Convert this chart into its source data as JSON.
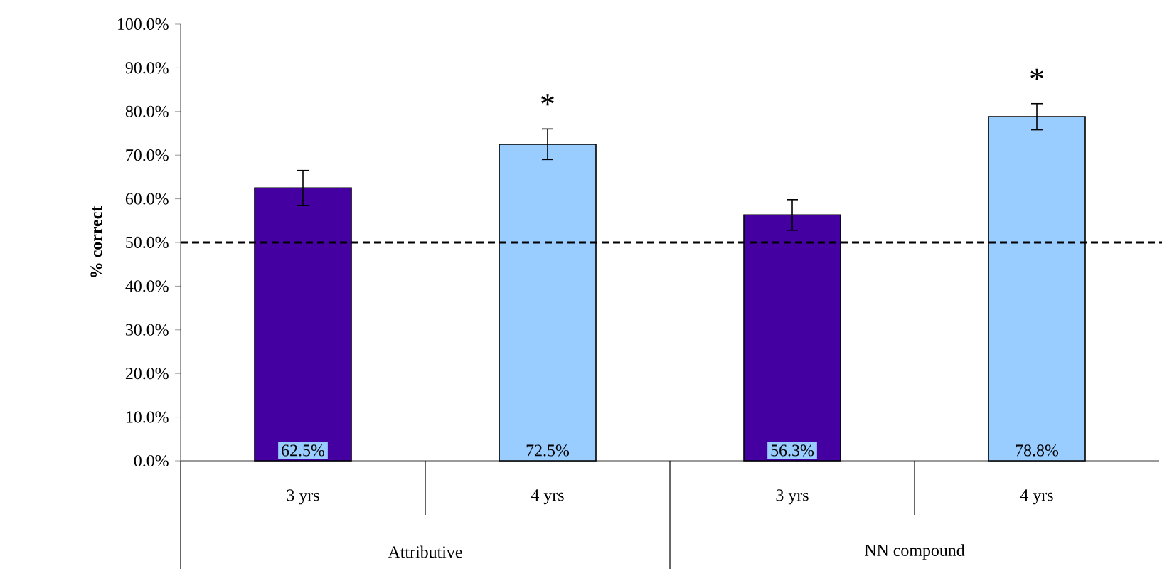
{
  "chart_data": {
    "type": "bar",
    "ylabel": "% correct",
    "categories": [
      "3 yrs",
      "4 yrs",
      "3 yrs",
      "4 yrs"
    ],
    "values": [
      62.5,
      72.5,
      56.3,
      78.8
    ],
    "colors": [
      "#4400a0",
      "#99ccff",
      "#4400a0",
      "#99ccff"
    ],
    "errors": [
      4,
      3.5,
      3.5,
      3
    ],
    "value_labels": [
      "62.5%",
      "72.5%",
      "56.3%",
      "78.8%"
    ],
    "ylim": [
      0,
      100
    ],
    "yticks": [
      {
        "value": 0,
        "label": "0.0%"
      },
      {
        "value": 10,
        "label": "10.0%"
      },
      {
        "value": 20,
        "label": "20.0%"
      },
      {
        "value": 30,
        "label": "30.0%"
      },
      {
        "value": 40,
        "label": "40.0%"
      },
      {
        "value": 50,
        "label": "50.0%"
      },
      {
        "value": 60,
        "label": "60.0%"
      },
      {
        "value": 70,
        "label": "70.0%"
      },
      {
        "value": 80,
        "label": "80.0%"
      },
      {
        "value": 90,
        "label": "90.0%"
      },
      {
        "value": 100,
        "label": "100.0%"
      }
    ],
    "ref_lines": [
      {
        "axis": "y",
        "value": 50,
        "line_style": "dashed"
      }
    ],
    "annotations": [
      "*",
      "*",
      "Attributive",
      "NN compound"
    ]
  }
}
